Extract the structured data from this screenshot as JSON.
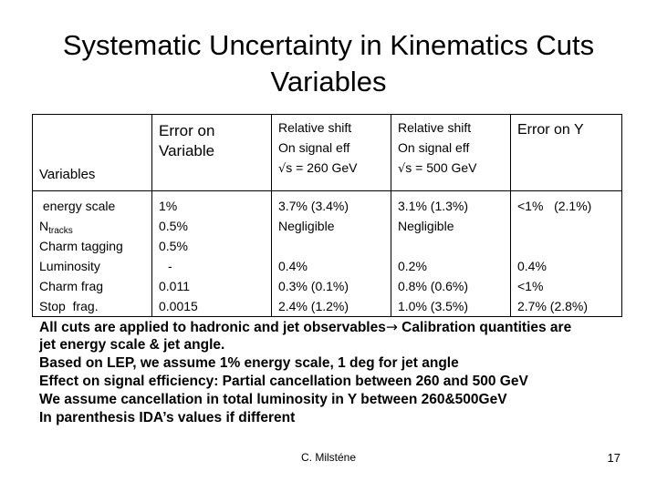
{
  "title": {
    "line1": "Systematic Uncertainty in Kinematics Cuts",
    "line2": "Variables"
  },
  "table": {
    "headers": {
      "variables": "Variables",
      "error_variable": [
        "Error on",
        "Variable"
      ],
      "shift_260": [
        "Relative shift",
        "On signal eff",
        "s = 260 GeV"
      ],
      "shift_500": [
        "Relative shift",
        "On signal eff",
        "s = 500 GeV"
      ],
      "error_y": "Error on Y",
      "sqrt_symbol": "√"
    },
    "variables": {
      "energy_scale": " energy scale",
      "ntracks_main": "N",
      "ntracks_sub": "tracks",
      "charm_tagging": "Charm tagging",
      "luminosity": "Luminosity",
      "charm_frag": "Charm frag",
      "stop_frag": "Stop  frag."
    },
    "error_on_variable": [
      "1%",
      "0.5%",
      "0.5%",
      "-",
      "0.011",
      "0.0015"
    ],
    "shift_260_values": [
      "3.7% (3.4%)",
      "Negligible",
      "0.4%",
      "0.3% (0.1%)",
      "2.4% (1.2%)"
    ],
    "shift_500_values": [
      "3.1% (1.3%)",
      "Negligible",
      "0.2%",
      "0.8% (0.6%)",
      "1.0% (3.5%)"
    ],
    "error_y_values": [
      "<1%   (2.1%)",
      "0.4%",
      "<1%",
      "2.7% (2.8%)"
    ]
  },
  "notes": {
    "line1a": "All cuts are applied to hadronic and jet observables",
    "arrow": "→",
    "line1b": " Calibration quantities are",
    "line2": "jet energy scale & jet angle.",
    "line3": "Based on LEP, we assume 1% energy scale, 1 deg for jet angle",
    "line4": "Effect on signal efficiency: Partial cancellation between 260 and 500 GeV",
    "line5": "We assume cancellation in total luminosity in Y between 260&500GeV",
    "line6": "In parenthesis IDA’s values if different"
  },
  "footer": {
    "author": "C. Milsténe",
    "page": "17"
  }
}
